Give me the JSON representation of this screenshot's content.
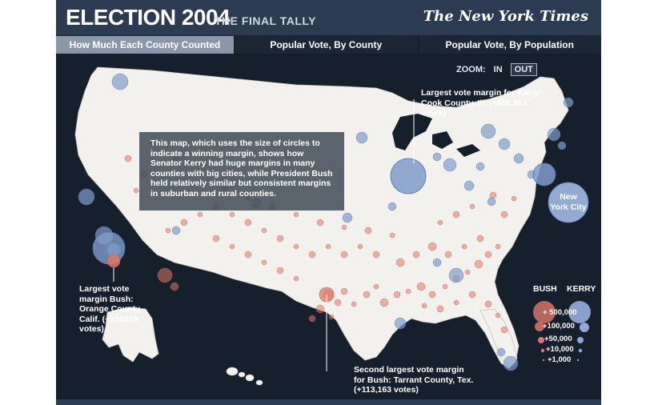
{
  "header": {
    "title": "ELECTION 2004",
    "subtitle": "THE FINAL TALLY",
    "brand": "The New York Times"
  },
  "tabs": [
    {
      "label": "How Much Each County Counted",
      "active": true
    },
    {
      "label": "Popular Vote, By County",
      "active": false
    },
    {
      "label": "Popular Vote, By Population",
      "active": false
    }
  ],
  "zoom": {
    "label": "ZOOM:",
    "in": "IN",
    "out": "OUT",
    "selected": "OUT"
  },
  "info_box": "This map, which uses the size of circles to indicate a winning margin, shows how Senator Kerry had huge margins in many counties with big cities, while President Bush held relatively similar but consistent margins in suburban and rural counties.",
  "annotations": {
    "kerry_cook": "Largest vote margin for Kerry: Cook County, Ill. (+805,857 votes)",
    "bush_orange": "Largest vote margin Bush: Orange County, Calif. (+155919 votes)",
    "bush_tarrant": "Second largest vote margin for Bush: Tarrant County, Tex. (+113,163 votes)",
    "nyc": "New York City"
  },
  "legend": {
    "bush_label": "BUSH",
    "kerry_label": "KERRY",
    "levels": [
      "+ 500,000",
      "+100,000",
      "+50,000",
      "+10,000",
      "+1,000"
    ]
  },
  "colors": {
    "bush": "#e0786a",
    "kerry": "#7f9ccb",
    "land": "#f3f1ee",
    "background": "#16202c",
    "header": "#2a3b52"
  }
}
